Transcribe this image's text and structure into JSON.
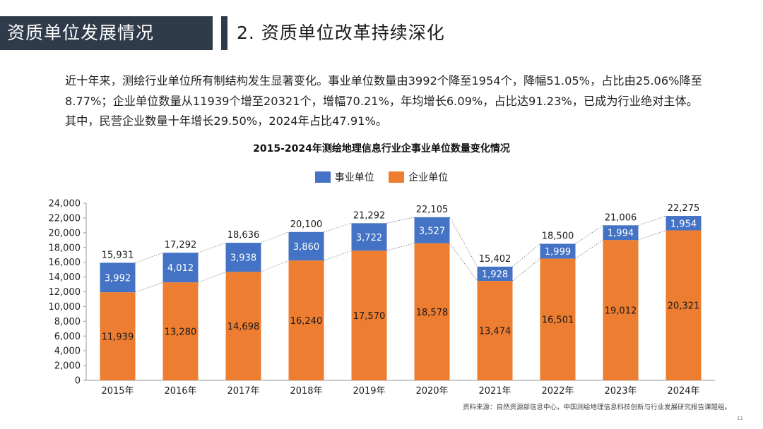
{
  "header": {
    "section": "资质单位发展情况",
    "subtitle": "2. 资质单位改革持续深化"
  },
  "intro_text": "近十年来，测绘行业单位所有制结构发生显著变化。事业单位数量由3992个降至1954个，降幅51.05%，占比由25.06%降至8.77%；企业单位数量从11939个增至20321个，增幅70.21%，年均增长6.09%，占比达91.23%，已成为行业绝对主体。其中，民营企业数量十年增长29.50%，2024年占比47.91%。",
  "colors": {
    "public": "#4472c4",
    "enterprise": "#ed7d31",
    "header_bg": "#2f3a4a"
  },
  "chart_data": {
    "type": "bar",
    "stacked": true,
    "title": "2015-2024年测绘地理信息行业企事业单位数量变化情况",
    "categories": [
      "2015年",
      "2016年",
      "2017年",
      "2018年",
      "2019年",
      "2020年",
      "2021年",
      "2022年",
      "2023年",
      "2024年"
    ],
    "series": [
      {
        "name": "企业单位",
        "values": [
          11939,
          13280,
          14698,
          16240,
          17570,
          18578,
          13474,
          16501,
          19012,
          20321
        ]
      },
      {
        "name": "事业单位",
        "values": [
          3992,
          4012,
          3938,
          3860,
          3722,
          3527,
          1928,
          1999,
          1994,
          1954
        ]
      }
    ],
    "segment_labels": {
      "企业单位": [
        "11,939",
        "13,280",
        "14,698",
        "16,240",
        "17,570",
        "18,578",
        "13,474",
        "16,501",
        "19,012",
        "20,321"
      ],
      "事业单位": [
        "3,992",
        "4,012",
        "3,938",
        "3,860",
        "3,722",
        "3,527",
        "1,928",
        "1,999",
        "1,994",
        "1,954"
      ]
    },
    "totals": [
      "15,931",
      "17,292",
      "18,636",
      "20,100",
      "21,292",
      "22,105",
      "15,402",
      "18,500",
      "21,006",
      "22,275"
    ],
    "total_values": [
      15931,
      17292,
      18636,
      20100,
      21292,
      22105,
      15402,
      18500,
      21006,
      22275
    ],
    "ylim": [
      0,
      24000
    ],
    "yticks": [
      0,
      2000,
      4000,
      6000,
      8000,
      10000,
      12000,
      14000,
      16000,
      18000,
      20000,
      22000,
      24000
    ],
    "ytick_labels": [
      "0",
      "2,000",
      "4,000",
      "6,000",
      "8,000",
      "10,000",
      "12,000",
      "14,000",
      "16,000",
      "18,000",
      "20,000",
      "22,000",
      "24,000"
    ],
    "legend_position": "top",
    "legend": [
      "事业单位",
      "企业单位"
    ],
    "grid": false
  },
  "footer": {
    "source": "资料来源：自然资源部信息中心，中国测绘地理信息科技创新与行业发展研究报告课题组。",
    "page": "11"
  }
}
